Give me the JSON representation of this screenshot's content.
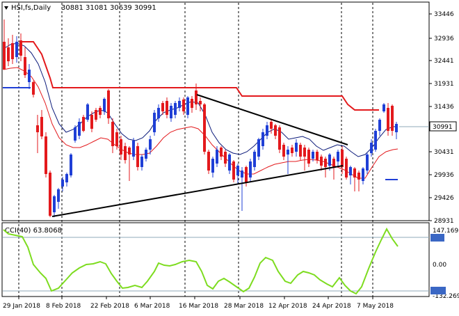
{
  "header": {
    "symbol": "HSI,fs,Daily",
    "ohlc": "30881 31081 30639 30991"
  },
  "price_axis": {
    "labels": [
      "33446",
      "32936",
      "32441",
      "31931",
      "31436",
      "30431",
      "29936",
      "29426",
      "28931"
    ],
    "current_price": "30991"
  },
  "cci": {
    "label": "CCI(40) 63.8068",
    "axis_labels": [
      "147.1698",
      "100",
      "0.00",
      "-100",
      "-132.269"
    ]
  },
  "time_axis": {
    "labels": [
      "29 Jan 2018",
      "8 Feb 2018",
      "22 Feb 2018",
      "6 Mar 2018",
      "16 Mar 2018",
      "28 Mar 2018",
      "12 Apr 2018",
      "24 Apr 2018",
      "7 May 2018"
    ]
  },
  "colors": {
    "bull": "#1f3fd6",
    "bear": "#e3191c",
    "ma_fast": "#0b1a7a",
    "ma_slow": "#e3191c",
    "resistance": "#e3191c",
    "trendline": "#000000",
    "cci_line": "#7ddc1f",
    "level_line": "#8fa9b8"
  },
  "chart_data": {
    "type": "candlestick",
    "price_scale": {
      "min": 28931,
      "max": 33446
    },
    "indicator": "CCI(40)",
    "cci_range": [
      -132.269,
      147.1698
    ]
  }
}
